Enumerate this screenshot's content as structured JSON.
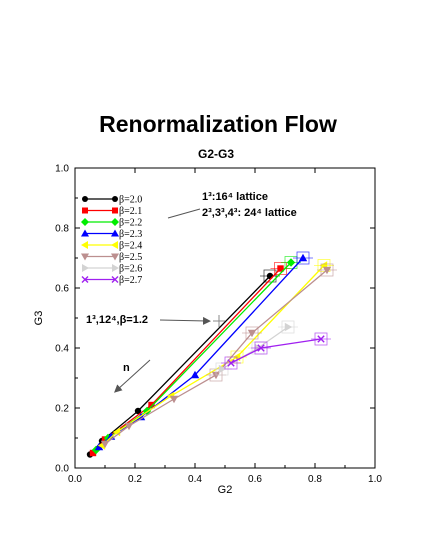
{
  "page_title": "Renormalization Flow",
  "chart_data": {
    "type": "line",
    "title": "G2-G3",
    "xlabel": "G2",
    "ylabel": "G3",
    "xlim": [
      0.0,
      1.0
    ],
    "ylim": [
      0.0,
      1.0
    ],
    "xticks": [
      "0.0",
      "0.2",
      "0.4",
      "0.6",
      "0.8",
      "1.0"
    ],
    "yticks": [
      "0.0",
      "0.2",
      "0.4",
      "0.6",
      "0.8",
      "1.0"
    ],
    "grid": false,
    "legend_position": "top-left",
    "series": [
      {
        "name": "β=2.0",
        "color": "#000000",
        "marker": "circle",
        "points": [
          [
            0.05,
            0.045
          ],
          [
            0.09,
            0.09
          ],
          [
            0.21,
            0.19
          ],
          [
            0.65,
            0.64
          ]
        ]
      },
      {
        "name": "β=2.1",
        "color": "#ff0000",
        "marker": "square",
        "points": [
          [
            0.06,
            0.05
          ],
          [
            0.1,
            0.095
          ],
          [
            0.255,
            0.21
          ],
          [
            0.685,
            0.665
          ]
        ]
      },
      {
        "name": "β=2.2",
        "color": "#00ee00",
        "marker": "diamond",
        "points": [
          [
            0.07,
            0.06
          ],
          [
            0.11,
            0.1
          ],
          [
            0.24,
            0.19
          ],
          [
            0.72,
            0.685
          ]
        ]
      },
      {
        "name": "β=2.3",
        "color": "#0000ff",
        "marker": "triangle-up",
        "points": [
          [
            0.08,
            0.07
          ],
          [
            0.12,
            0.105
          ],
          [
            0.22,
            0.17
          ],
          [
            0.4,
            0.31
          ],
          [
            0.76,
            0.7
          ]
        ]
      },
      {
        "name": "β=2.4",
        "color": "#ffff00",
        "marker": "triangle-left",
        "points": [
          [
            0.09,
            0.075
          ],
          [
            0.14,
            0.12
          ],
          [
            0.32,
            0.24
          ],
          [
            0.54,
            0.37
          ],
          [
            0.83,
            0.675
          ]
        ]
      },
      {
        "name": "β=2.5",
        "color": "#bc8f8f",
        "marker": "triangle-down",
        "points": [
          [
            0.1,
            0.08
          ],
          [
            0.18,
            0.14
          ],
          [
            0.33,
            0.23
          ],
          [
            0.47,
            0.31
          ],
          [
            0.59,
            0.45
          ],
          [
            0.84,
            0.66
          ]
        ]
      },
      {
        "name": "β=2.6",
        "color": "#d3d3d3",
        "marker": "triangle-right",
        "points": [
          [
            0.49,
            0.33
          ],
          [
            0.61,
            0.4
          ],
          [
            0.71,
            0.47
          ]
        ]
      },
      {
        "name": "β=2.7",
        "color": "#a020f0",
        "marker": "x",
        "points": [
          [
            0.52,
            0.35
          ],
          [
            0.62,
            0.4
          ],
          [
            0.82,
            0.43
          ]
        ]
      }
    ],
    "annotations": {
      "lattice_line1": "1³:16⁴ lattice",
      "lattice_line2": "2³,3³,4³: 24⁴ lattice",
      "marker_label": "1³,12⁴,β=1.2",
      "flow_label": "n"
    },
    "extra_point": {
      "name": "1³,12⁴,β=1.2",
      "x": 0.48,
      "y": 0.49,
      "color": "#888888"
    }
  }
}
